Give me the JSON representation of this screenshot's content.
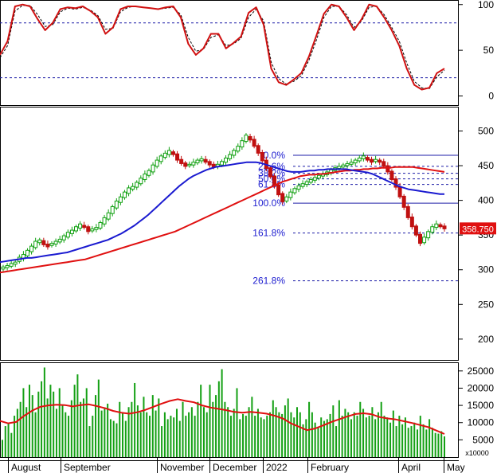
{
  "colors": {
    "background": "#ffffff",
    "frame": "#000000",
    "guide": "#1f1fa8",
    "candle_up": "#10a010",
    "candle_down": "#c01010",
    "ma_fast": "#1a1ad0",
    "ma_slow": "#e01010",
    "volume_bar": "#14a014",
    "volume_ma": "#e01010",
    "stoch_k": "#d01010",
    "stoch_d": "#000000",
    "fib_label": "#2020d0",
    "price_tag_bg": "#e01010",
    "price_tag_text": "#ffffff"
  },
  "x_axis": {
    "months": [
      "August",
      "September",
      "November",
      "December",
      "2022",
      "February",
      "April",
      "May"
    ]
  },
  "price_tag": "358.750",
  "chart_data": [
    {
      "type": "line",
      "panel": "stochastic oscillator",
      "ylim": [
        -10,
        105
      ],
      "yticks": [
        "0",
        "50",
        "100"
      ],
      "guides": [
        20,
        80
      ],
      "series": [
        {
          "values": [
            45,
            60,
            98,
            100,
            98,
            84,
            72,
            80,
            95,
            97,
            96,
            98,
            93,
            86,
            68,
            75,
            95,
            98,
            98,
            97,
            96,
            95,
            97,
            98,
            86,
            57,
            45,
            52,
            68,
            68,
            52,
            58,
            65,
            91,
            97,
            78,
            30,
            15,
            12,
            18,
            25,
            43,
            66,
            90,
            100,
            98,
            86,
            72,
            84,
            100,
            98,
            86,
            72,
            55,
            30,
            12,
            7,
            9,
            25,
            30
          ]
        },
        {
          "values": [
            42,
            55,
            93,
            99,
            99,
            89,
            76,
            78,
            92,
            96,
            95,
            97,
            94,
            88,
            73,
            74,
            92,
            97,
            98,
            97,
            96,
            95,
            96,
            97,
            89,
            64,
            49,
            51,
            64,
            67,
            55,
            57,
            63,
            86,
            95,
            82,
            37,
            19,
            13,
            16,
            22,
            39,
            61,
            86,
            98,
            98,
            89,
            75,
            82,
            97,
            98,
            89,
            75,
            60,
            36,
            16,
            9,
            8,
            21,
            28
          ]
        }
      ]
    },
    {
      "type": "candlestick",
      "panel": "price",
      "ylim": [
        170,
        535
      ],
      "yticks": [
        "200",
        "250",
        "300",
        "350",
        "400",
        "450",
        "500"
      ],
      "candles": [
        [
          301,
          304
        ],
        [
          303,
          306
        ],
        [
          305,
          309
        ],
        [
          308,
          311
        ],
        [
          312,
          318
        ],
        [
          316,
          322
        ],
        [
          320,
          328
        ],
        [
          326,
          334
        ],
        [
          332,
          341
        ],
        [
          339,
          343
        ],
        [
          342,
          336
        ],
        [
          337,
          333
        ],
        [
          335,
          338
        ],
        [
          337,
          341
        ],
        [
          340,
          344
        ],
        [
          343,
          349
        ],
        [
          347,
          354
        ],
        [
          352,
          357
        ],
        [
          356,
          362
        ],
        [
          360,
          366
        ],
        [
          364,
          361
        ],
        [
          362,
          355
        ],
        [
          356,
          359
        ],
        [
          358,
          361
        ],
        [
          360,
          368
        ],
        [
          366,
          375
        ],
        [
          373,
          382
        ],
        [
          381,
          391
        ],
        [
          389,
          399
        ],
        [
          397,
          405
        ],
        [
          404,
          412
        ],
        [
          410,
          418
        ],
        [
          416,
          420
        ],
        [
          419,
          426
        ],
        [
          424,
          432
        ],
        [
          430,
          438
        ],
        [
          436,
          443
        ],
        [
          441,
          451
        ],
        [
          449,
          458
        ],
        [
          456,
          464
        ],
        [
          462,
          468
        ],
        [
          466,
          472
        ],
        [
          470,
          466
        ],
        [
          467,
          458
        ],
        [
          459,
          453
        ],
        [
          454,
          449
        ],
        [
          450,
          452
        ],
        [
          451,
          455
        ],
        [
          454,
          458
        ],
        [
          457,
          460
        ],
        [
          459,
          455
        ],
        [
          456,
          451
        ],
        [
          452,
          448
        ],
        [
          449,
          452
        ],
        [
          451,
          456
        ],
        [
          455,
          461
        ],
        [
          460,
          466
        ],
        [
          465,
          472
        ],
        [
          471,
          478
        ],
        [
          477,
          486
        ],
        [
          485,
          494
        ],
        [
          492,
          487
        ],
        [
          488,
          478
        ],
        [
          479,
          468
        ],
        [
          469,
          457
        ],
        [
          458,
          446
        ],
        [
          447,
          434
        ],
        [
          435,
          421
        ],
        [
          422,
          408
        ],
        [
          410,
          398
        ],
        [
          399,
          405
        ],
        [
          404,
          412
        ],
        [
          411,
          417
        ],
        [
          416,
          421
        ],
        [
          420,
          424
        ],
        [
          423,
          427
        ],
        [
          426,
          430
        ],
        [
          429,
          433
        ],
        [
          432,
          436
        ],
        [
          435,
          438
        ],
        [
          437,
          441
        ],
        [
          440,
          444
        ],
        [
          443,
          447
        ],
        [
          446,
          449
        ],
        [
          448,
          451
        ],
        [
          450,
          453
        ],
        [
          452,
          455
        ],
        [
          454,
          458
        ],
        [
          457,
          461
        ],
        [
          460,
          464
        ],
        [
          462,
          458
        ],
        [
          459,
          455
        ],
        [
          456,
          459
        ],
        [
          458,
          455
        ],
        [
          456,
          449
        ],
        [
          450,
          441
        ],
        [
          442,
          430
        ],
        [
          431,
          419
        ],
        [
          420,
          405
        ],
        [
          406,
          390
        ],
        [
          391,
          375
        ],
        [
          376,
          362
        ],
        [
          363,
          350
        ],
        [
          351,
          338
        ],
        [
          339,
          347
        ],
        [
          346,
          355
        ],
        [
          354,
          362
        ],
        [
          361,
          366
        ],
        [
          365,
          362
        ],
        [
          363,
          359
        ]
      ],
      "series": [
        {
          "values": [
            311,
            312,
            313,
            314,
            315,
            316,
            317,
            317,
            318,
            319,
            320,
            321,
            322,
            323,
            324,
            325,
            327,
            329,
            331,
            333,
            335,
            337,
            339,
            341,
            343,
            346,
            349,
            352,
            356,
            360,
            364,
            369,
            374,
            379,
            385,
            391,
            397,
            403,
            409,
            415,
            421,
            426,
            431,
            435,
            438,
            441,
            444,
            446,
            448,
            449,
            450,
            451,
            452,
            453,
            454,
            455,
            455,
            455,
            454,
            452,
            450,
            448,
            446,
            444,
            442,
            441,
            441,
            441,
            442,
            443,
            443,
            444,
            444,
            445,
            445,
            445,
            445,
            445,
            444,
            443,
            442,
            441,
            440,
            438,
            435,
            432,
            429,
            426,
            423,
            420,
            418,
            416,
            415,
            414,
            413,
            412,
            411,
            410,
            409,
            409
          ]
        },
        {
          "values": [
            296,
            297,
            298,
            299,
            300,
            301,
            302,
            303,
            304,
            305,
            306,
            307,
            308,
            309,
            310,
            311,
            312,
            313,
            314,
            315,
            317,
            319,
            321,
            323,
            325,
            327,
            329,
            331,
            333,
            335,
            337,
            339,
            341,
            343,
            345,
            347,
            349,
            351,
            353,
            355,
            358,
            361,
            364,
            367,
            370,
            373,
            376,
            379,
            382,
            385,
            388,
            391,
            394,
            397,
            400,
            403,
            406,
            409,
            412,
            415,
            418,
            421,
            424,
            427,
            429,
            431,
            433,
            435,
            436,
            437,
            437,
            438,
            438,
            439,
            440,
            441,
            442,
            443,
            443,
            444,
            444,
            445,
            445,
            446,
            446,
            447,
            447,
            447,
            448,
            448,
            448,
            448,
            448,
            447,
            446,
            445,
            444,
            443,
            442,
            441
          ]
        }
      ]
    },
    {
      "type": "bar",
      "panel": "volume",
      "ylim": [
        0,
        27500
      ],
      "yticks": [
        "5000",
        "10000",
        "15000",
        "20000",
        "25000"
      ],
      "values": [
        5000,
        9000,
        9800,
        7000,
        12000,
        14000,
        16000,
        20000,
        14500,
        21000,
        18000,
        13000,
        19000,
        22000,
        26000,
        17000,
        21000,
        19000,
        14000,
        20000,
        15000,
        13000,
        12000,
        16500,
        21000,
        24000,
        16000,
        17000,
        20000,
        9000,
        12000,
        18000,
        22500,
        13500,
        14000,
        15500,
        11000,
        10500,
        9800,
        16000,
        13000,
        10500,
        14500,
        16000,
        21500,
        15000,
        13000,
        17500,
        13000,
        12000,
        18000,
        13500,
        17000,
        9000,
        13000,
        11000,
        12000,
        11500,
        14000,
        10500,
        16000,
        12000,
        13000,
        14500,
        12000,
        16000,
        21000,
        14500,
        13000,
        21000,
        16000,
        18000,
        22000,
        25500,
        16000,
        14500,
        12000,
        14000,
        20000,
        11000,
        12500,
        12000,
        14500,
        17500,
        12000,
        14000,
        11500,
        11000,
        12000,
        13000,
        16500,
        14500,
        13000,
        12500,
        15000,
        17000,
        13000,
        11500,
        14500,
        13000,
        9500,
        11000,
        16000,
        13000,
        10000,
        8500,
        11500,
        10500,
        11000,
        12500,
        15000,
        9000,
        16500,
        12000,
        14000,
        13000,
        11000,
        13000,
        12000,
        16000,
        14000,
        11500,
        12000,
        14500,
        11000,
        13000,
        16000,
        12000,
        11500,
        10000,
        13500,
        9000,
        12000,
        9500,
        11500,
        8500,
        9000,
        10000,
        8000,
        12000,
        9500,
        8000,
        11000,
        8500,
        7000,
        6800,
        7500,
        6000
      ],
      "series": [
        {
          "values": [
            10500,
            9500,
            9000,
            9500,
            11000,
            12500,
            14000,
            15000,
            15500,
            15500,
            15000,
            15000,
            15000,
            14500,
            14000,
            13500,
            13500,
            14000,
            15000,
            16000,
            16500,
            15500,
            14500,
            13500,
            13000,
            12500,
            12000,
            11000,
            9000,
            9000,
            10000,
            11000,
            12000,
            12500,
            13000,
            12500,
            12500,
            12000,
            11500,
            11000,
            10000,
            9500,
            8500,
            7000
          ]
        }
      ],
      "ma_values": [
        10500,
        9800,
        10200,
        12000,
        13500,
        14600,
        15000,
        15200,
        15100,
        14700,
        15100,
        15300,
        14800,
        14200,
        13400,
        12900,
        12600,
        13000,
        13700,
        14600,
        15500,
        16300,
        16800,
        16300,
        15900,
        15000,
        14400,
        14000,
        13600,
        13100,
        12900,
        13100,
        12900,
        12600,
        12000,
        11200,
        9800,
        8800,
        7800,
        8300,
        9200,
        10200,
        11000,
        11800,
        12500,
        12700,
        12400,
        11600,
        11200,
        10900,
        10400,
        9900,
        9300,
        8700,
        7700,
        6700
      ]
    }
  ],
  "fibonacci": {
    "levels": [
      {
        "label": "0.0%",
        "value": 465
      },
      {
        "label": "23.6%",
        "value": 449
      },
      {
        "label": "38.2%",
        "value": 439
      },
      {
        "label": "50.0%",
        "value": 431
      },
      {
        "label": "61.8%",
        "value": 423
      },
      {
        "label": "100.0%",
        "value": 396
      },
      {
        "label": "161.8%",
        "value": 353
      },
      {
        "label": "261.8%",
        "value": 284
      }
    ]
  },
  "volume_unit": "x10000"
}
